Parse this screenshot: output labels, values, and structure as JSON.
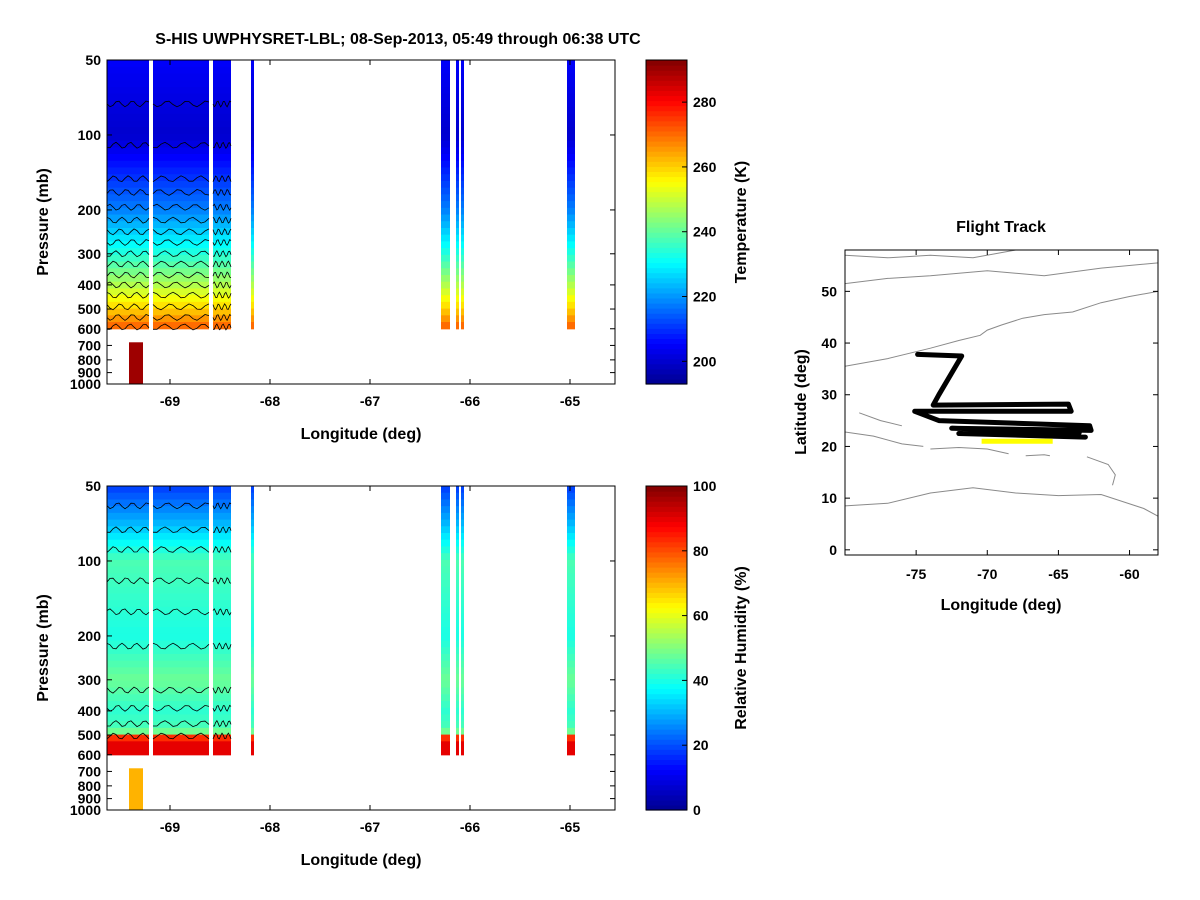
{
  "figure_title": "S-HIS UWPHYSRET-LBL;   08-Sep-2013, 05:49 through 06:38 UTC",
  "colormap": [
    "#00008f",
    "#0000ff",
    "#0080ff",
    "#00ffff",
    "#80ff80",
    "#ffff00",
    "#ff8000",
    "#ff0000",
    "#800000"
  ],
  "chart_data": [
    {
      "type": "heatmap",
      "name": "temperature-section",
      "xlabel": "Longitude (deg)",
      "ylabel": "Pressure (mb)",
      "xlim": [
        -69.63,
        -64.55
      ],
      "xticks": [
        -69,
        -68,
        -67,
        -66,
        -65
      ],
      "xtick_labels": [
        "-69",
        "-68",
        "-67",
        "-66",
        "-65"
      ],
      "ylim": [
        50,
        1000
      ],
      "yscale": "log",
      "yticks": [
        50,
        100,
        200,
        300,
        400,
        500,
        600,
        700,
        800,
        900,
        1000
      ],
      "ytick_labels": [
        "50",
        "100",
        "200",
        "300",
        "400",
        "500",
        "600",
        "700",
        "800",
        "900",
        "1000"
      ],
      "colorbar": {
        "label": "Temperature (K)",
        "range": [
          193,
          293
        ],
        "ticks": [
          200,
          220,
          240,
          260,
          280
        ],
        "tick_labels": [
          "200",
          "220",
          "240",
          "260",
          "280"
        ]
      },
      "data_columns": [
        {
          "lon_start": -69.63,
          "lon_end": -69.21
        },
        {
          "lon_start": -69.17,
          "lon_end": -68.61
        },
        {
          "lon_start": -68.57,
          "lon_end": -68.39
        },
        {
          "lon_start": -68.19,
          "lon_end": -68.16
        },
        {
          "lon_start": -66.29,
          "lon_end": -66.2
        },
        {
          "lon_start": -66.14,
          "lon_end": -66.11
        },
        {
          "lon_start": -66.09,
          "lon_end": -66.06
        },
        {
          "lon_start": -65.03,
          "lon_end": -64.95
        }
      ],
      "profile": {
        "pressure_mb": [
          50,
          100,
          200,
          300,
          400,
          500,
          600
        ],
        "temperature_k": [
          205,
          200,
          218,
          234,
          248,
          260,
          272
        ]
      },
      "surface_retrieval": {
        "lon_start": -69.41,
        "lon_end": -69.27,
        "pressure_top_mb": 680,
        "pressure_bottom_mb": 1000,
        "value_k": 290
      },
      "contour_pressures_mb": [
        75,
        110,
        150,
        170,
        195,
        220,
        245,
        270,
        300,
        330,
        365,
        400,
        440,
        490,
        540,
        590
      ]
    },
    {
      "type": "heatmap",
      "name": "relative-humidity-section",
      "xlabel": "Longitude (deg)",
      "ylabel": "Pressure (mb)",
      "xlim": [
        -69.63,
        -64.55
      ],
      "xticks": [
        -69,
        -68,
        -67,
        -66,
        -65
      ],
      "xtick_labels": [
        "-69",
        "-68",
        "-67",
        "-66",
        "-65"
      ],
      "ylim": [
        50,
        1000
      ],
      "yscale": "log",
      "yticks": [
        50,
        100,
        200,
        300,
        400,
        500,
        600,
        700,
        800,
        900,
        1000
      ],
      "ytick_labels": [
        "50",
        "100",
        "200",
        "300",
        "400",
        "500",
        "600",
        "700",
        "800",
        "900",
        "1000"
      ],
      "colorbar": {
        "label": "Relative Humidity (%)",
        "range": [
          0,
          100
        ],
        "ticks": [
          0,
          20,
          40,
          60,
          80,
          100
        ],
        "tick_labels": [
          "0",
          "20",
          "40",
          "60",
          "80",
          "100"
        ]
      },
      "data_columns": [
        {
          "lon_start": -69.63,
          "lon_end": -69.21
        },
        {
          "lon_start": -69.17,
          "lon_end": -68.61
        },
        {
          "lon_start": -68.57,
          "lon_end": -68.39
        },
        {
          "lon_start": -68.19,
          "lon_end": -68.16
        },
        {
          "lon_start": -66.29,
          "lon_end": -66.2
        },
        {
          "lon_start": -66.14,
          "lon_end": -66.11
        },
        {
          "lon_start": -66.09,
          "lon_end": -66.06
        },
        {
          "lon_start": -65.03,
          "lon_end": -64.95
        }
      ],
      "profile": {
        "pressure_mb": [
          50,
          70,
          100,
          150,
          200,
          300,
          400,
          480,
          520,
          600
        ],
        "rh_pct": [
          18,
          30,
          45,
          42,
          40,
          48,
          42,
          45,
          90,
          90
        ]
      },
      "surface_retrieval": {
        "lon_start": -69.41,
        "lon_end": -69.27,
        "pressure_top_mb": 680,
        "pressure_bottom_mb": 1000,
        "value_pct": 70
      },
      "contour_pressures_mb": [
        60,
        75,
        90,
        120,
        160,
        220,
        330,
        390,
        450,
        505
      ]
    },
    {
      "type": "line",
      "name": "flight-track",
      "title": "Flight Track",
      "xlabel": "Longitude (deg)",
      "ylabel": "Latitude (deg)",
      "xlim": [
        -80,
        -58
      ],
      "ylim": [
        -1,
        58
      ],
      "xticks": [
        -75,
        -70,
        -65,
        -60
      ],
      "xtick_labels": [
        "-75",
        "-70",
        "-65",
        "-60"
      ],
      "yticks": [
        0,
        10,
        20,
        30,
        40,
        50
      ],
      "ytick_labels": [
        "0",
        "10",
        "20",
        "30",
        "40",
        "50"
      ],
      "coastlines": [
        {
          "name": "north-america-coast",
          "lon": [
            -80,
            -77,
            -74,
            -72,
            -70.5,
            -70,
            -69,
            -67.5,
            -66,
            -64,
            -62,
            -60,
            -58
          ],
          "lat": [
            35.5,
            37,
            39,
            40.5,
            41.5,
            42.5,
            43.5,
            44.8,
            45.5,
            46,
            47.8,
            49,
            50
          ]
        },
        {
          "name": "labrador-coast",
          "lon": [
            -80,
            -77,
            -74,
            -70,
            -66,
            -62,
            -58
          ],
          "lat": [
            51.5,
            52.5,
            53,
            54,
            53,
            54.5,
            55.5
          ]
        },
        {
          "name": "northern-coast",
          "lon": [
            -80,
            -77,
            -74,
            -71,
            -68
          ],
          "lat": [
            57,
            56.5,
            57,
            56.5,
            58
          ]
        },
        {
          "name": "cuba",
          "lon": [
            -80,
            -78,
            -76,
            -74.5
          ],
          "lat": [
            22.8,
            22,
            20.5,
            20
          ]
        },
        {
          "name": "hispaniola",
          "lon": [
            -74,
            -72,
            -70,
            -68.5
          ],
          "lat": [
            19.5,
            19.8,
            19.5,
            18.6
          ]
        },
        {
          "name": "puerto-rico",
          "lon": [
            -67.3,
            -66,
            -65.6
          ],
          "lat": [
            18.2,
            18.4,
            18.2
          ]
        },
        {
          "name": "lesser-antilles",
          "lon": [
            -63,
            -61.5,
            -61,
            -61.2
          ],
          "lat": [
            18,
            16.5,
            14.5,
            12.5
          ]
        },
        {
          "name": "south-america-coast",
          "lon": [
            -80,
            -77,
            -74,
            -71,
            -68,
            -65,
            -62,
            -59,
            -58
          ],
          "lat": [
            8.5,
            9,
            11,
            12,
            11,
            10.5,
            10.7,
            8,
            6.5
          ]
        },
        {
          "name": "bahamas",
          "lon": [
            -79,
            -77.5,
            -76
          ],
          "lat": [
            26.5,
            25,
            24
          ]
        }
      ],
      "track": {
        "lon": [
          -74.9,
          -71.8,
          -73.4,
          -73.8,
          -64.3,
          -64.1,
          -75.1,
          -73.4,
          -62.8,
          -62.7,
          -72.5,
          -63.5,
          -63.6,
          -72.0,
          -63.1
        ],
        "lat": [
          37.8,
          37.5,
          30.0,
          28.0,
          28.2,
          26.8,
          26.8,
          25.0,
          24.0,
          23.1,
          23.5,
          23.0,
          22.2,
          22.5,
          21.8
        ],
        "color": "#000000"
      },
      "segment": {
        "lon": [
          -70.4,
          -65.4
        ],
        "lat": [
          21.0,
          21.0
        ],
        "color": "#ffff00"
      }
    }
  ]
}
